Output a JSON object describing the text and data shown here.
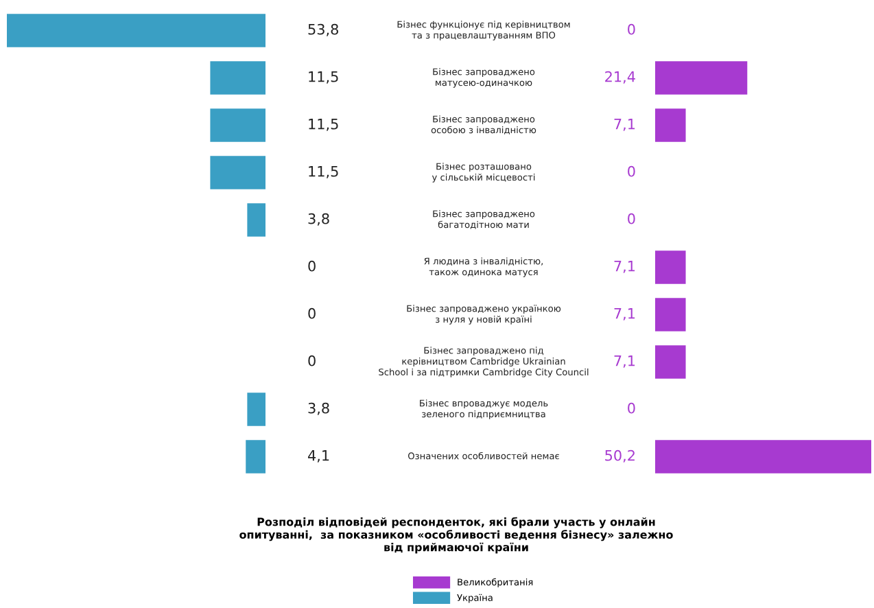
{
  "chart_data": [
    {
      "type": "bar",
      "orientation": "horizontal",
      "title": "Розподіл відповідей респонденток, які брали участь у онлайн\nопитуванні,  за показником «особливості ведення бізнесу» залежно\nвід приймаючої країни",
      "categories": [
        "Бізнес функціонує під керівництвом\nта з працевлаштуванням ВПО",
        "Бізнес запроваджено\nматусею-одиначкою",
        "Бізнес запроваджено\nособою з інвалідністю",
        "Бізнес розташовано\nу сільській місцевості",
        "Бізнес запроваджено\nбагатодітною мати",
        "Я людина з інвалідністю,\nтакож одинока матуся",
        "Бізнес запроваджено українкою\nз нуля у новій країні",
        "Бізнес запроваджено під\nкерівництвом Cambridge Ukrainian\nSchool і за підтримки Cambridge City Council",
        "Бізнес впроваджує модель\nзеленого підприємництва",
        "Означених особливостей немає"
      ],
      "series": [
        {
          "name": "Україна",
          "color": "#3a9fc4",
          "values": [
            53.8,
            11.5,
            11.5,
            11.5,
            3.8,
            0,
            0,
            0,
            3.8,
            4.1
          ],
          "value_labels": [
            "53,8",
            "11,5",
            "11,5",
            "11,5",
            "3,8",
            "0",
            "0",
            "0",
            "3,8",
            "4,1"
          ]
        }
      ],
      "legend": "bottom"
    },
    {
      "type": "bar",
      "orientation": "horizontal",
      "categories": [
        null,
        null,
        null,
        null,
        null,
        null,
        null,
        null,
        null,
        null
      ],
      "series": [
        {
          "name": "Великобританія",
          "color": "#a73ad0",
          "values": [
            0,
            21.4,
            7.1,
            0,
            0,
            7.1,
            7.1,
            7.1,
            0,
            50.2
          ],
          "value_labels": [
            "0",
            "21,4",
            "7,1",
            "0",
            "0",
            "7,1",
            "7,1",
            "7,1",
            "0",
            "50,2"
          ]
        }
      ]
    }
  ]
}
